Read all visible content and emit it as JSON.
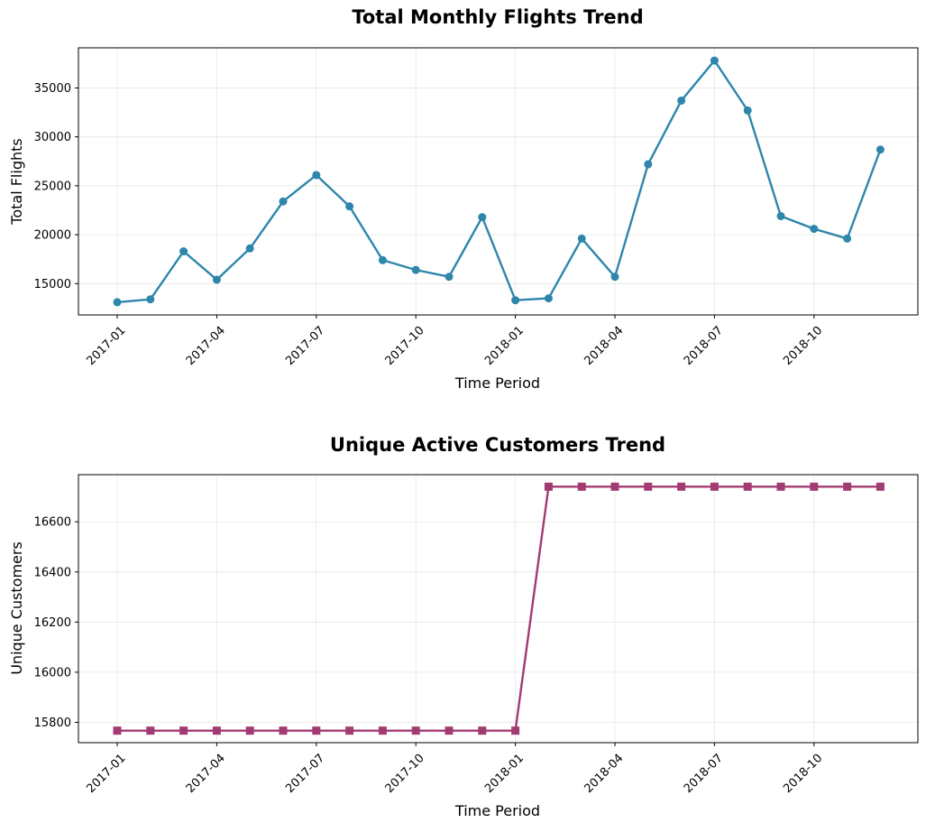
{
  "chart_data": [
    {
      "type": "line",
      "title": "Total Monthly Flights Trend",
      "xlabel": "Time Period",
      "ylabel": "Total Flights",
      "x_tick_labels": [
        "2017-01",
        "2017-04",
        "2017-07",
        "2017-10",
        "2018-01",
        "2018-04",
        "2018-07",
        "2018-10"
      ],
      "y_ticks": [
        15000,
        20000,
        25000,
        30000,
        35000
      ],
      "ylim": [
        11800,
        39100
      ],
      "grid": true,
      "marker": "circle",
      "color": "#2e86ab",
      "series": [
        {
          "x": [
            "2017-01",
            "2017-02",
            "2017-03",
            "2017-04",
            "2017-05",
            "2017-06",
            "2017-07",
            "2017-08",
            "2017-09",
            "2017-10",
            "2017-11",
            "2017-12",
            "2018-01",
            "2018-02",
            "2018-03",
            "2018-04",
            "2018-05",
            "2018-06",
            "2018-07",
            "2018-08",
            "2018-09",
            "2018-10",
            "2018-11",
            "2018-12"
          ],
          "values": [
            13100,
            13400,
            18300,
            15400,
            18600,
            23400,
            26100,
            22900,
            17400,
            16400,
            15700,
            21800,
            13300,
            13500,
            19600,
            15700,
            27200,
            33700,
            37800,
            32700,
            21900,
            20600,
            19600,
            28700
          ]
        }
      ]
    },
    {
      "type": "line",
      "title": "Unique Active Customers Trend",
      "xlabel": "Time Period",
      "ylabel": "Unique Customers",
      "x_tick_labels": [
        "2017-01",
        "2017-04",
        "2017-07",
        "2017-10",
        "2018-01",
        "2018-04",
        "2018-07",
        "2018-10"
      ],
      "y_ticks": [
        15800,
        16000,
        16200,
        16400,
        16600
      ],
      "ylim": [
        15719,
        16788
      ],
      "grid": true,
      "marker": "square",
      "color": "#a23b72",
      "series": [
        {
          "x": [
            "2017-01",
            "2017-02",
            "2017-03",
            "2017-04",
            "2017-05",
            "2017-06",
            "2017-07",
            "2017-08",
            "2017-09",
            "2017-10",
            "2017-11",
            "2017-12",
            "2018-01",
            "2018-02",
            "2018-03",
            "2018-04",
            "2018-05",
            "2018-06",
            "2018-07",
            "2018-08",
            "2018-09",
            "2018-10",
            "2018-11",
            "2018-12"
          ],
          "values": [
            15767,
            15767,
            15767,
            15767,
            15767,
            15767,
            15767,
            15767,
            15767,
            15767,
            15767,
            15767,
            15767,
            16740,
            16740,
            16740,
            16740,
            16740,
            16740,
            16740,
            16740,
            16740,
            16740,
            16740
          ]
        }
      ]
    }
  ]
}
